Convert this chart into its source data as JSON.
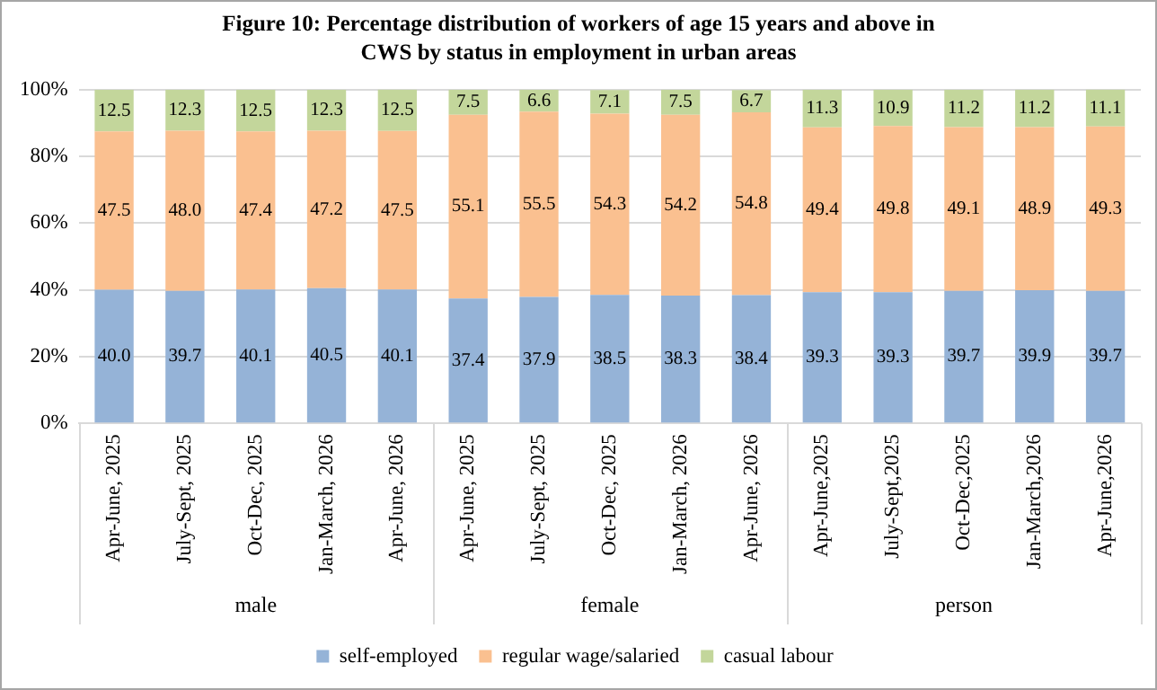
{
  "chart_data": {
    "type": "bar",
    "title": "Figure 10: Percentage distribution  of workers of age 15 years and  above  in CWS by status in employment   in urban  areas",
    "categories": [
      "Apr-June, 2025",
      "July-Sept, 2025",
      "Oct-Dec, 2025",
      "Jan-March, 2026",
      "Apr-June, 2026",
      "Apr-June, 2025",
      "July-Sept, 2025",
      "Oct-Dec, 2025",
      "Jan-March, 2026",
      "Apr-June, 2026",
      "Apr-June,2025",
      "July-Sept,2025",
      "Oct-Dec,2025",
      "Jan-March,2026",
      "Apr-June,2026"
    ],
    "annotations": [
      "male",
      "female",
      "person"
    ],
    "stacked": true,
    "series": [
      {
        "name": "self-employed",
        "color": "#95b3d7",
        "values": [
          40.0,
          39.7,
          40.1,
          40.5,
          40.1,
          37.4,
          37.9,
          38.5,
          38.3,
          38.4,
          39.3,
          39.3,
          39.7,
          39.9,
          39.7
        ],
        "value_labels": [
          "40.0",
          "39.7",
          "40.1",
          "40.5",
          "40.1",
          "37.4",
          "37.9",
          "38.5",
          "38.3",
          "38.4",
          "39.3",
          "39.3",
          "39.7",
          "39.9",
          "39.7"
        ]
      },
      {
        "name": "regular wage/salaried",
        "color": "#fac090",
        "values": [
          47.5,
          48.0,
          47.4,
          47.2,
          47.5,
          55.1,
          55.5,
          54.3,
          54.2,
          54.8,
          49.4,
          49.8,
          49.1,
          48.9,
          49.3
        ],
        "value_labels": [
          "47.5",
          "48.0",
          "47.4",
          "47.2",
          "47.5",
          "55.1",
          "55.5",
          "54.3",
          "54.2",
          "54.8",
          "49.4",
          "49.8",
          "49.1",
          "48.9",
          "49.3"
        ]
      },
      {
        "name": "casual labour",
        "color": "#c3d69b",
        "values": [
          12.5,
          12.3,
          12.5,
          12.3,
          12.5,
          7.5,
          6.6,
          7.1,
          7.5,
          6.7,
          11.3,
          10.9,
          11.2,
          11.2,
          11.1
        ],
        "value_labels": [
          "12.5",
          "12.3",
          "12.5",
          "12.3",
          "12.5",
          "7.5",
          "6.6",
          "7.1",
          "7.5",
          "6.7",
          "11.3",
          "10.9",
          "11.2",
          "11.2",
          "11.1"
        ]
      }
    ],
    "ylim": [
      0,
      100
    ],
    "yticks": [
      {
        "value": 0,
        "label": "0%"
      },
      {
        "value": 20,
        "label": "20%"
      },
      {
        "value": 40,
        "label": "40%"
      },
      {
        "value": 60,
        "label": "60%"
      },
      {
        "value": 80,
        "label": "80%"
      },
      {
        "value": 100,
        "label": "100%"
      }
    ],
    "grid": "y",
    "legend": "bottom"
  }
}
